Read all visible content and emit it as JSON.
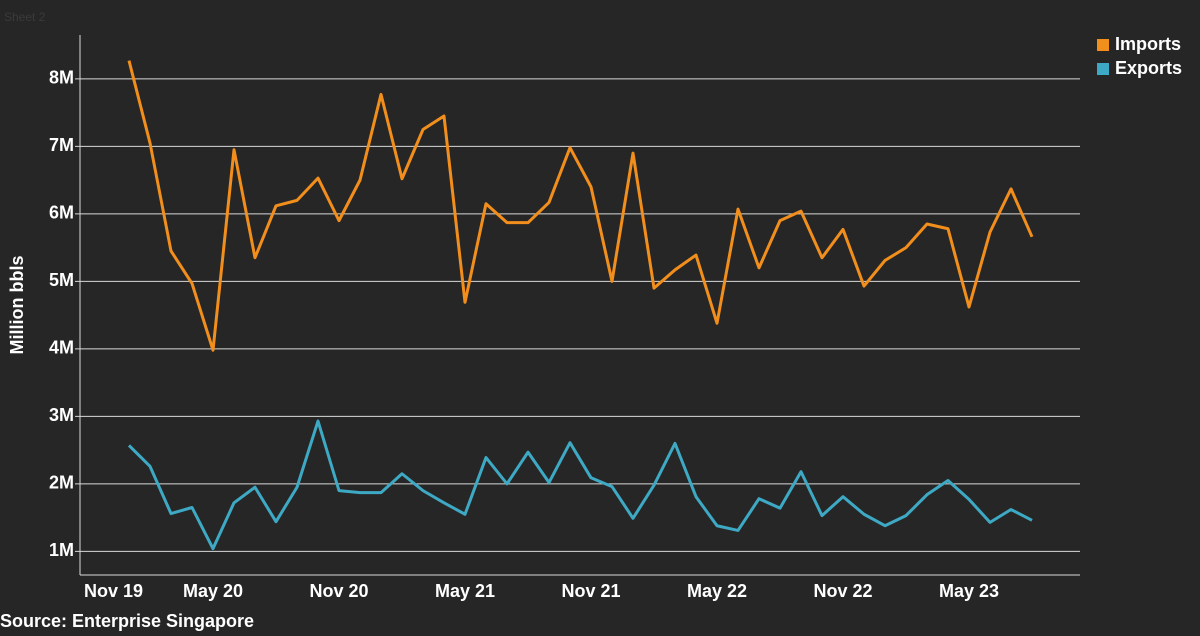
{
  "sheet_label": "Sheet 2",
  "source": "Source: Enterprise Singapore",
  "chart_data": {
    "type": "line",
    "ylabel": "Million bbls",
    "categories": [
      "Nov 19",
      null,
      null,
      null,
      null,
      null,
      "May 20",
      null,
      null,
      null,
      null,
      null,
      "Nov 20",
      null,
      null,
      null,
      null,
      null,
      "May 21",
      null,
      null,
      null,
      null,
      null,
      "Nov 21",
      null,
      null,
      null,
      null,
      null,
      "May 22",
      null,
      null,
      null,
      null,
      null,
      "Nov 22",
      null,
      null,
      null,
      null,
      null,
      "May 23",
      null,
      null,
      null
    ],
    "series": [
      {
        "name": "Imports",
        "color": "#f28e1c",
        "values": [
          null,
          null,
          8.27,
          7.05,
          5.45,
          4.97,
          3.98,
          6.95,
          5.35,
          6.12,
          6.2,
          6.53,
          5.9,
          6.5,
          7.77,
          6.52,
          7.25,
          7.45,
          4.69,
          6.15,
          5.87,
          5.87,
          6.17,
          6.98,
          6.4,
          5.0,
          6.9,
          4.9,
          5.17,
          5.39,
          4.38,
          6.07,
          5.2,
          5.9,
          6.04,
          5.35,
          5.77,
          4.93,
          5.31,
          5.5,
          5.85,
          5.78,
          4.62,
          5.73,
          6.37,
          5.66
        ]
      },
      {
        "name": "Exports",
        "color": "#3ea9c4",
        "values": [
          null,
          null,
          2.57,
          2.26,
          1.56,
          1.65,
          1.04,
          1.72,
          1.95,
          1.44,
          1.95,
          2.93,
          1.9,
          1.87,
          1.87,
          2.15,
          1.9,
          1.72,
          1.55,
          2.39,
          2.0,
          2.47,
          2.02,
          2.61,
          2.09,
          1.96,
          1.49,
          1.98,
          2.6,
          1.81,
          1.38,
          1.31,
          1.78,
          1.64,
          2.18,
          1.53,
          1.81,
          1.55,
          1.38,
          1.53,
          1.84,
          2.05,
          1.77,
          1.43,
          1.62,
          1.46
        ]
      }
    ],
    "ylim": [
      0.65,
      8.65
    ],
    "yticks": [
      {
        "value": 1,
        "label": "1M"
      },
      {
        "value": 2,
        "label": "2M"
      },
      {
        "value": 3,
        "label": "3M"
      },
      {
        "value": 4,
        "label": "4M"
      },
      {
        "value": 5,
        "label": "5M"
      },
      {
        "value": 6,
        "label": "6M"
      },
      {
        "value": 7,
        "label": "7M"
      },
      {
        "value": 8,
        "label": "8M"
      }
    ],
    "grid": true,
    "legend": "top-right"
  }
}
